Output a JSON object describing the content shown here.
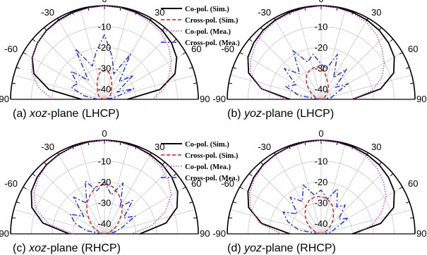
{
  "legend": [
    {
      "label": "Co-pol. (Sim.)",
      "color": "#000000",
      "dash": "solid"
    },
    {
      "label": "Cross-pol. (Sim.)",
      "color": "#e01010",
      "dash": "dash"
    },
    {
      "label": "Co-pol. (Mea.)",
      "color": "#d040e0",
      "dash": "dot"
    },
    {
      "label": "Cross-pol. (Mea.)",
      "color": "#1a2ee0",
      "dash": "dashdot"
    }
  ],
  "chart_data": [
    {
      "type": "polar",
      "caption": {
        "prefix": "(a) ",
        "italic": "xoz",
        "suffix": "-plane (LHCP)"
      },
      "angle_ticks": [
        "-90",
        "-60",
        "-30",
        "0",
        "30",
        "60",
        "90"
      ],
      "radial_ticks": [
        "-10",
        "-20",
        "-30",
        "-40"
      ],
      "rlim": [
        -45,
        0
      ],
      "theta": [
        -90,
        -80,
        -70,
        -60,
        -50,
        -40,
        -30,
        -20,
        -10,
        0,
        10,
        20,
        30,
        40,
        50,
        60,
        70,
        80,
        90
      ],
      "series": [
        {
          "name": "Co-pol. (Sim.)",
          "values": [
            -34,
            -18,
            -9,
            -5,
            -3,
            -1.8,
            -1,
            -0.5,
            -0.2,
            0,
            -0.2,
            -0.5,
            -1,
            -1.8,
            -3,
            -5,
            -9,
            -18,
            -34
          ]
        },
        {
          "name": "Cross-pol. (Sim.)",
          "values": [
            -45,
            -44,
            -43,
            -42,
            -41,
            -40,
            -38,
            -35,
            -32,
            -31,
            -32,
            -35,
            -38,
            -40,
            -41,
            -42,
            -43,
            -44,
            -45
          ]
        },
        {
          "name": "Co-pol. (Mea.)",
          "values": [
            -20,
            -13,
            -8,
            -5,
            -3,
            -2,
            -1.5,
            -1,
            -0.5,
            0,
            -0.3,
            -1,
            -2,
            -3,
            -5,
            -8,
            -12,
            -16,
            -22
          ]
        },
        {
          "name": "Cross-pol. (Mea.)",
          "values": [
            -42,
            -35,
            -28,
            -30,
            -24,
            -33,
            -17,
            -28,
            -22,
            -14,
            -24,
            -32,
            -20,
            -34,
            -27,
            -38,
            -30,
            -40,
            -44
          ]
        }
      ]
    },
    {
      "type": "polar",
      "caption": {
        "prefix": "(b) ",
        "italic": "yoz",
        "suffix": "-plane (LHCP)"
      },
      "angle_ticks": [
        "-90",
        "-60",
        "-30",
        "0",
        "30",
        "60",
        "90"
      ],
      "radial_ticks": [
        "-10",
        "-20",
        "-30",
        "-40"
      ],
      "rlim": [
        -45,
        0
      ],
      "theta": [
        -90,
        -80,
        -70,
        -60,
        -50,
        -40,
        -30,
        -20,
        -10,
        0,
        10,
        20,
        30,
        40,
        50,
        60,
        70,
        80,
        90
      ],
      "series": [
        {
          "name": "Co-pol. (Sim.)",
          "values": [
            -30,
            -16,
            -8,
            -4.5,
            -2.8,
            -1.7,
            -1,
            -0.5,
            -0.2,
            0,
            -0.2,
            -0.5,
            -1,
            -1.7,
            -2.8,
            -4.5,
            -8,
            -16,
            -30
          ]
        },
        {
          "name": "Cross-pol. (Sim.)",
          "values": [
            -45,
            -44,
            -42,
            -40,
            -37,
            -34,
            -31,
            -30,
            -29,
            -30,
            -33,
            -36,
            -38,
            -40,
            -42,
            -43,
            -44,
            -45,
            -45
          ]
        },
        {
          "name": "Co-pol. (Mea.)",
          "values": [
            -28,
            -16,
            -9,
            -6,
            -4,
            -2.5,
            -1.5,
            -1,
            -0.5,
            0,
            -0.4,
            -1,
            -2,
            -4,
            -7,
            -10,
            -14,
            -20,
            -30
          ]
        },
        {
          "name": "Cross-pol. (Mea.)",
          "values": [
            -44,
            -34,
            -27,
            -31,
            -22,
            -29,
            -18,
            -26,
            -23,
            -28,
            -30,
            -22,
            -33,
            -26,
            -36,
            -30,
            -38,
            -40,
            -44
          ]
        }
      ]
    },
    {
      "type": "polar",
      "caption": {
        "prefix": "(c) ",
        "italic": "xoz",
        "suffix": "-plane (RHCP)"
      },
      "angle_ticks": [
        "-90",
        "-60",
        "-30",
        "0",
        "30",
        "60",
        "90"
      ],
      "radial_ticks": [
        "-10",
        "-20",
        "-30",
        "-40"
      ],
      "rlim": [
        -45,
        0
      ],
      "theta": [
        -90,
        -80,
        -70,
        -60,
        -50,
        -40,
        -30,
        -20,
        -10,
        0,
        10,
        20,
        30,
        40,
        50,
        60,
        70,
        80,
        90
      ],
      "series": [
        {
          "name": "Co-pol. (Sim.)",
          "values": [
            -28,
            -15,
            -8,
            -4.5,
            -2.8,
            -1.7,
            -1,
            -0.5,
            -0.2,
            0,
            -0.2,
            -0.5,
            -1,
            -1.7,
            -2.8,
            -4.5,
            -8,
            -15,
            -28
          ]
        },
        {
          "name": "Cross-pol. (Sim.)",
          "values": [
            -45,
            -44,
            -42,
            -39,
            -36,
            -32,
            -28,
            -25,
            -22,
            -21,
            -22,
            -25,
            -28,
            -32,
            -36,
            -39,
            -42,
            -44,
            -45
          ]
        },
        {
          "name": "Co-pol. (Mea.)",
          "values": [
            -30,
            -18,
            -10,
            -6,
            -3.5,
            -2,
            -1.2,
            -0.6,
            -0.3,
            0,
            -0.3,
            -0.7,
            -1.5,
            -3,
            -5,
            -8,
            -14,
            -22,
            -32
          ]
        },
        {
          "name": "Cross-pol. (Mea.)",
          "values": [
            -44,
            -36,
            -30,
            -26,
            -32,
            -22,
            -28,
            -18,
            -24,
            -20,
            -26,
            -19,
            -30,
            -24,
            -33,
            -28,
            -36,
            -40,
            -44
          ]
        }
      ]
    },
    {
      "type": "polar",
      "caption": {
        "prefix": "(d) ",
        "italic": "yoz",
        "suffix": "-plane (RHCP)"
      },
      "angle_ticks": [
        "-90",
        "-60",
        "-30",
        "0",
        "30",
        "60",
        "90"
      ],
      "radial_ticks": [
        "-10",
        "-20",
        "-30",
        "-40"
      ],
      "rlim": [
        -45,
        0
      ],
      "theta": [
        -90,
        -80,
        -70,
        -60,
        -50,
        -40,
        -30,
        -20,
        -10,
        0,
        10,
        20,
        30,
        40,
        50,
        60,
        70,
        80,
        90
      ],
      "series": [
        {
          "name": "Co-pol. (Sim.)",
          "values": [
            -30,
            -16,
            -8,
            -4.5,
            -2.8,
            -1.7,
            -1,
            -0.5,
            -0.2,
            0,
            -0.2,
            -0.5,
            -1,
            -1.7,
            -2.8,
            -4.5,
            -8,
            -16,
            -30
          ]
        },
        {
          "name": "Cross-pol. (Sim.)",
          "values": [
            -45,
            -44,
            -42,
            -39,
            -36,
            -33,
            -30,
            -28,
            -27,
            -27,
            -28,
            -30,
            -33,
            -36,
            -39,
            -42,
            -44,
            -45,
            -45
          ]
        },
        {
          "name": "Co-pol. (Mea.)",
          "values": [
            -26,
            -15,
            -9,
            -5.5,
            -3.5,
            -2,
            -1.2,
            -0.6,
            -0.3,
            0,
            -0.4,
            -1,
            -2,
            -3.5,
            -6,
            -9,
            -14,
            -20,
            -28
          ]
        },
        {
          "name": "Cross-pol. (Mea.)",
          "values": [
            -44,
            -34,
            -28,
            -24,
            -30,
            -22,
            -27,
            -20,
            -26,
            -24,
            -28,
            -22,
            -30,
            -27,
            -34,
            -30,
            -38,
            -40,
            -44
          ]
        }
      ]
    }
  ]
}
